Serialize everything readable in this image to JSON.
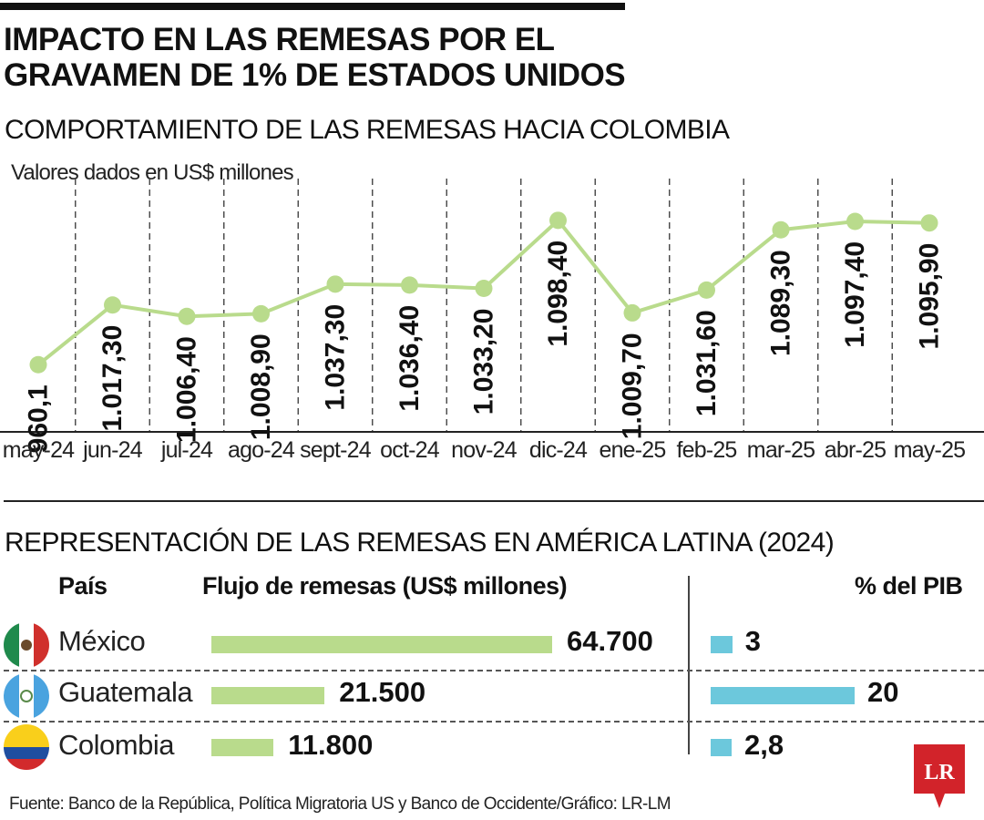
{
  "title": "IMPACTO EN LAS REMESAS POR EL GRAVAMEN DE 1% DE ESTADOS UNIDOS",
  "chart_data": [
    {
      "type": "line",
      "title": "COMPORTAMIENTO DE LAS REMESAS HACIA COLOMBIA",
      "note": "Valores dados en US$ millones",
      "categories": [
        "may-24",
        "jun-24",
        "jul-24",
        "ago-24",
        "sept-24",
        "oct-24",
        "nov-24",
        "dic-24",
        "ene-25",
        "feb-25",
        "mar-25",
        "abr-25",
        "may-25"
      ],
      "values": [
        960.1,
        1017.3,
        1006.4,
        1008.9,
        1037.3,
        1036.4,
        1033.2,
        1098.4,
        1009.7,
        1031.6,
        1089.3,
        1097.4,
        1095.9
      ],
      "labels": [
        "960,1",
        "1.017,30",
        "1.006,40",
        "1.008,90",
        "1.037,30",
        "1.036,40",
        "1.033,20",
        "1.098,40",
        "1.009,70",
        "1.031,60",
        "1.089,30",
        "1.097,40",
        "1.095,90"
      ],
      "ylim": [
        880,
        1100
      ],
      "line_color": "#b9db8c",
      "grid": "dashed vertical separators"
    },
    {
      "type": "bar",
      "title": "REPRESENTACIÓN DE LAS REMESAS EN AMÉRICA LATINA (2024)",
      "columns": {
        "country": "País",
        "flow": "Flujo de remesas (US$ millones)",
        "gdp": "% del PIB"
      },
      "categories": [
        "México",
        "Guatemala",
        "Colombia"
      ],
      "series": [
        {
          "name": "Flujo de remesas (US$ millones)",
          "values": [
            64700,
            21500,
            11800
          ],
          "labels": [
            "64.700",
            "21.500",
            "11.800"
          ],
          "color": "#b9db8c"
        },
        {
          "name": "% del PIB",
          "values": [
            3,
            20,
            2.8
          ],
          "labels": [
            "3",
            "20",
            "2,8"
          ],
          "color": "#6cc8dc"
        }
      ]
    }
  ],
  "flags": [
    "mexico-flag-icon",
    "guatemala-flag-icon",
    "colombia-flag-icon"
  ],
  "source": "Fuente: Banco de la República, Política Migratoria US y Banco de Occidente/Gráfico: LR-LM",
  "logo_text": "LR"
}
